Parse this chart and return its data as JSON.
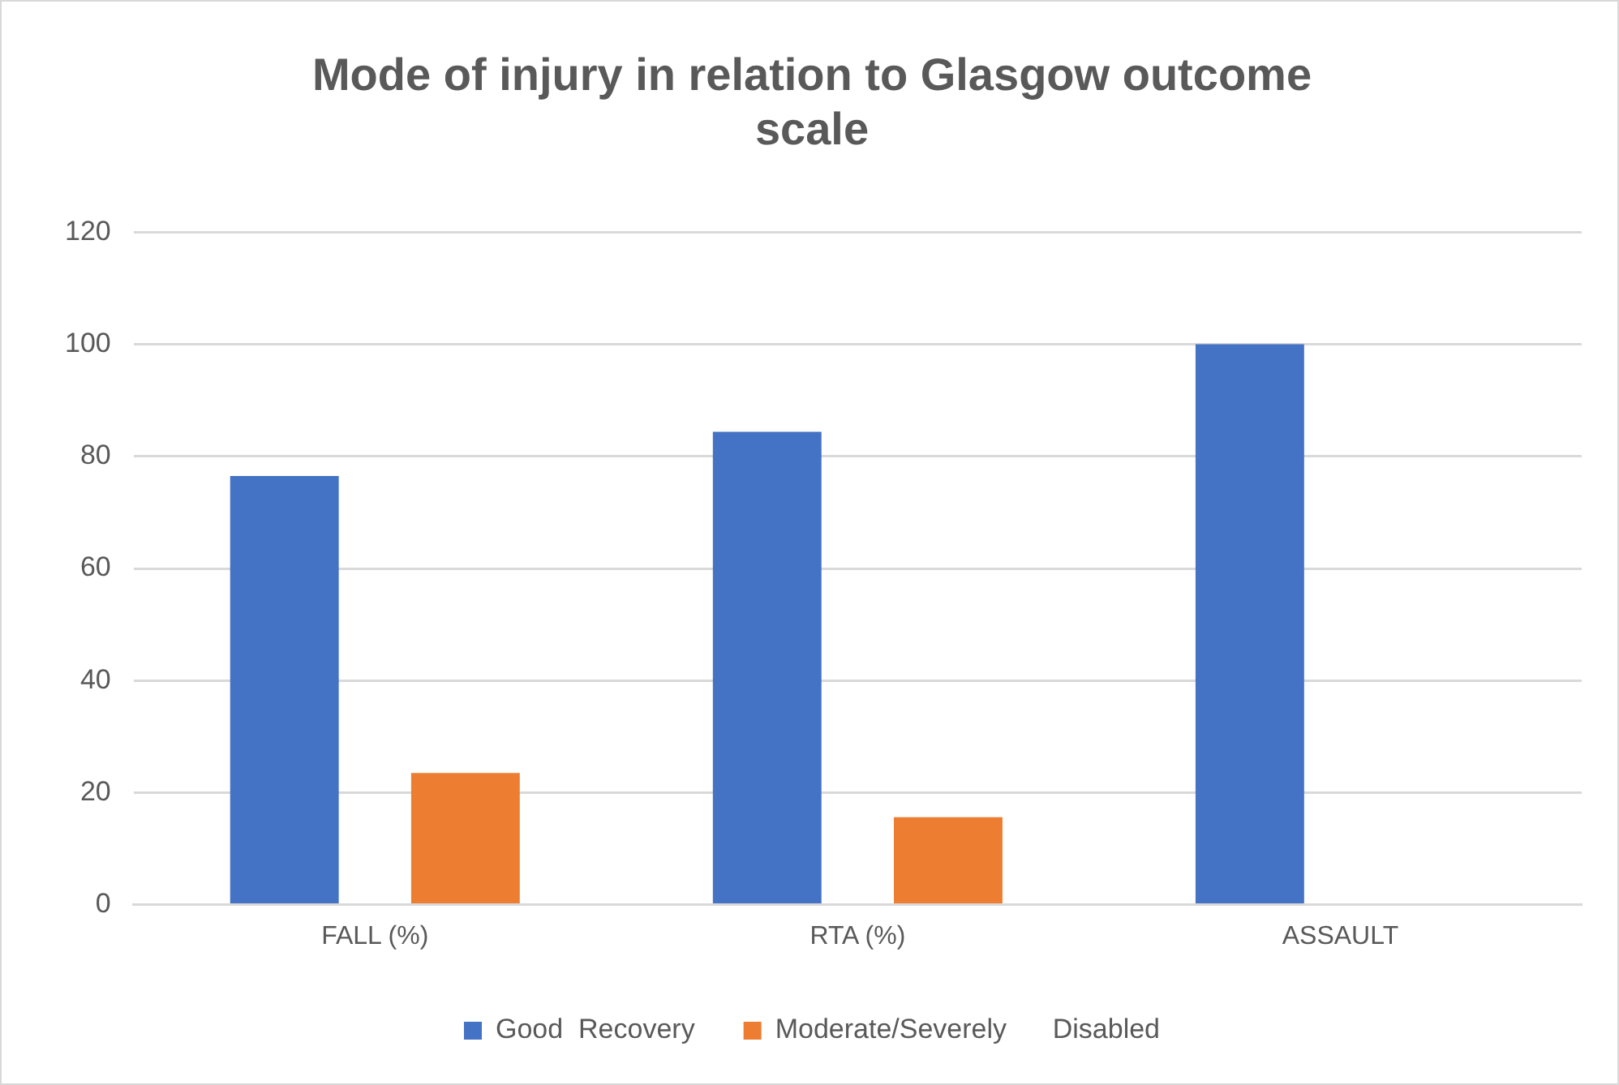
{
  "chart_data": {
    "type": "bar",
    "title": "Mode of injury in relation to Glasgow outcome scale",
    "categories": [
      "FALL (%)",
      "RTA (%)",
      "ASSAULT"
    ],
    "series": [
      {
        "name": "Good  Recovery",
        "color": "#4472c4",
        "values": [
          76.5,
          84.4,
          100
        ]
      },
      {
        "name": "Moderate/Severely      Disabled",
        "color": "#ed7d31",
        "values": [
          23.5,
          15.6,
          0
        ]
      }
    ],
    "ylim": [
      0,
      120
    ],
    "yticks": [
      0,
      20,
      40,
      60,
      80,
      100,
      120
    ],
    "grid": "y",
    "legend": "bottom"
  }
}
